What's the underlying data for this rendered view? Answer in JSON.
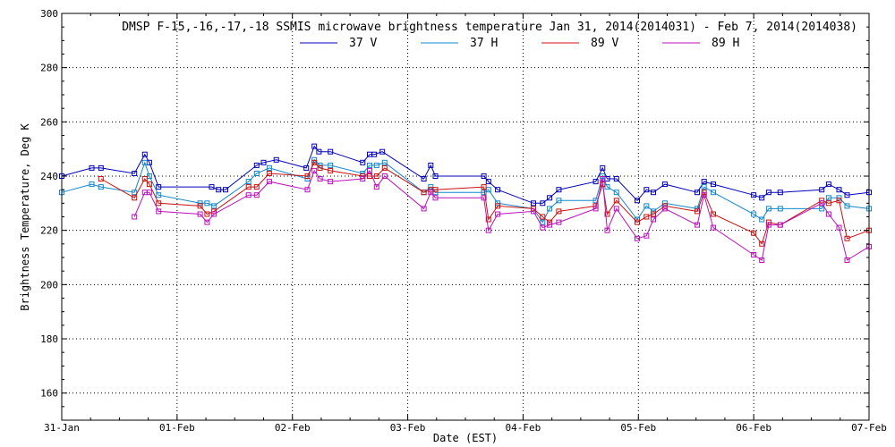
{
  "chart_data": {
    "type": "line",
    "title": "DMSP F-15,-16,-17,-18 SSMIS microwave brightness temperature Jan 31, 2014(2014031) - Feb  7, 2014(2014038)",
    "xlabel": "Date (EST)",
    "ylabel": "Brightness Temperature, Deg K",
    "xlim": [
      0,
      7
    ],
    "ylim": [
      150,
      300
    ],
    "yticks": [
      160,
      180,
      200,
      220,
      240,
      260,
      280,
      300
    ],
    "xticks": [
      {
        "x": 0,
        "label": "31-Jan"
      },
      {
        "x": 1,
        "label": "01-Feb"
      },
      {
        "x": 2,
        "label": "02-Feb"
      },
      {
        "x": 3,
        "label": "03-Feb"
      },
      {
        "x": 4,
        "label": "04-Feb"
      },
      {
        "x": 5,
        "label": "05-Feb"
      },
      {
        "x": 6,
        "label": "06-Feb"
      },
      {
        "x": 7,
        "label": "07-Feb"
      }
    ],
    "grid": true,
    "legend": "top-center",
    "series": [
      {
        "name": "37 V",
        "color": "#0000bb",
        "x": [
          0.0,
          0.26,
          0.34,
          0.63,
          0.72,
          0.76,
          0.84,
          1.3,
          1.36,
          1.42,
          1.69,
          1.75,
          1.86,
          2.12,
          2.19,
          2.23,
          2.33,
          2.61,
          2.67,
          2.71,
          2.78,
          3.14,
          3.2,
          3.24,
          3.66,
          3.7,
          3.78,
          4.09,
          4.17,
          4.23,
          4.31,
          4.63,
          4.69,
          4.73,
          4.81,
          4.99,
          5.07,
          5.13,
          5.23,
          5.51,
          5.57,
          5.65,
          6.0,
          6.07,
          6.13,
          6.23,
          6.59,
          6.65,
          6.74,
          6.81,
          7.0
        ],
        "values": [
          240,
          243,
          243,
          241,
          248,
          245,
          236,
          236,
          235,
          235,
          244,
          245,
          246,
          243,
          251,
          249,
          249,
          245,
          248,
          248,
          249,
          239,
          244,
          240,
          240,
          238,
          235,
          230,
          230,
          232,
          235,
          238,
          243,
          239,
          239,
          231,
          235,
          234,
          237,
          234,
          238,
          237,
          233,
          232,
          234,
          234,
          235,
          237,
          235,
          233,
          234
        ]
      },
      {
        "name": "37 H",
        "color": "#1188cc",
        "x": [
          0.0,
          0.26,
          0.34,
          0.63,
          0.72,
          0.76,
          0.84,
          1.2,
          1.26,
          1.32,
          1.62,
          1.69,
          1.8,
          2.13,
          2.19,
          2.24,
          2.33,
          2.61,
          2.67,
          2.73,
          2.8,
          3.14,
          3.2,
          3.24,
          3.66,
          3.7,
          3.78,
          4.09,
          4.17,
          4.23,
          4.31,
          4.63,
          4.69,
          4.73,
          4.81,
          4.99,
          5.07,
          5.13,
          5.23,
          5.51,
          5.57,
          5.65,
          6.0,
          6.07,
          6.13,
          6.23,
          6.59,
          6.65,
          6.74,
          6.81,
          7.0
        ],
        "values": [
          234,
          237,
          236,
          234,
          245,
          240,
          233,
          230,
          230,
          229,
          238,
          241,
          243,
          239,
          246,
          244,
          244,
          241,
          244,
          244,
          245,
          234,
          236,
          234,
          234,
          235,
          230,
          228,
          223,
          228,
          231,
          231,
          240,
          236,
          234,
          224,
          229,
          227,
          230,
          228,
          236,
          234,
          226,
          224,
          228,
          228,
          228,
          232,
          232,
          229,
          228
        ]
      },
      {
        "name": "89 V",
        "color": "#cc1111",
        "x": [
          0.34,
          0.63,
          0.72,
          0.76,
          0.84,
          1.2,
          1.26,
          1.32,
          1.62,
          1.69,
          1.8,
          2.13,
          2.19,
          2.24,
          2.33,
          2.61,
          2.67,
          2.73,
          2.8,
          3.14,
          3.2,
          3.24,
          3.66,
          3.7,
          3.78,
          4.09,
          4.17,
          4.23,
          4.31,
          4.63,
          4.69,
          4.73,
          4.81,
          4.99,
          5.07,
          5.13,
          5.23,
          5.51,
          5.57,
          5.65,
          6.0,
          6.07,
          6.13,
          6.23,
          6.59,
          6.65,
          6.74,
          6.81,
          7.0
        ],
        "values": [
          239,
          232,
          239,
          237,
          230,
          229,
          226,
          227,
          236,
          236,
          241,
          240,
          245,
          243,
          242,
          240,
          240,
          240,
          243,
          234,
          235,
          235,
          236,
          224,
          229,
          228,
          225,
          223,
          227,
          229,
          237,
          226,
          231,
          223,
          225,
          226,
          229,
          227,
          234,
          226,
          219,
          215,
          223,
          222,
          231,
          230,
          231,
          217,
          220
        ]
      },
      {
        "name": "89 H",
        "color": "#bb11bb",
        "x": [
          0.63,
          0.72,
          0.76,
          0.84,
          1.2,
          1.26,
          1.32,
          1.62,
          1.69,
          1.8,
          2.13,
          2.19,
          2.24,
          2.33,
          2.61,
          2.67,
          2.73,
          2.8,
          3.14,
          3.2,
          3.24,
          3.66,
          3.7,
          3.78,
          4.09,
          4.17,
          4.23,
          4.31,
          4.63,
          4.69,
          4.73,
          4.81,
          4.99,
          5.07,
          5.13,
          5.23,
          5.51,
          5.57,
          5.65,
          6.0,
          6.07,
          6.13,
          6.23,
          6.59,
          6.65,
          6.74,
          6.81,
          7.0
        ],
        "values": [
          225,
          234,
          234,
          227,
          226,
          223,
          226,
          233,
          233,
          238,
          235,
          242,
          239,
          238,
          239,
          242,
          236,
          240,
          228,
          234,
          232,
          232,
          220,
          226,
          227,
          221,
          222,
          223,
          228,
          239,
          220,
          228,
          217,
          218,
          224,
          228,
          222,
          233,
          221,
          211,
          209,
          222,
          222,
          230,
          226,
          221,
          209,
          214
        ]
      }
    ]
  }
}
